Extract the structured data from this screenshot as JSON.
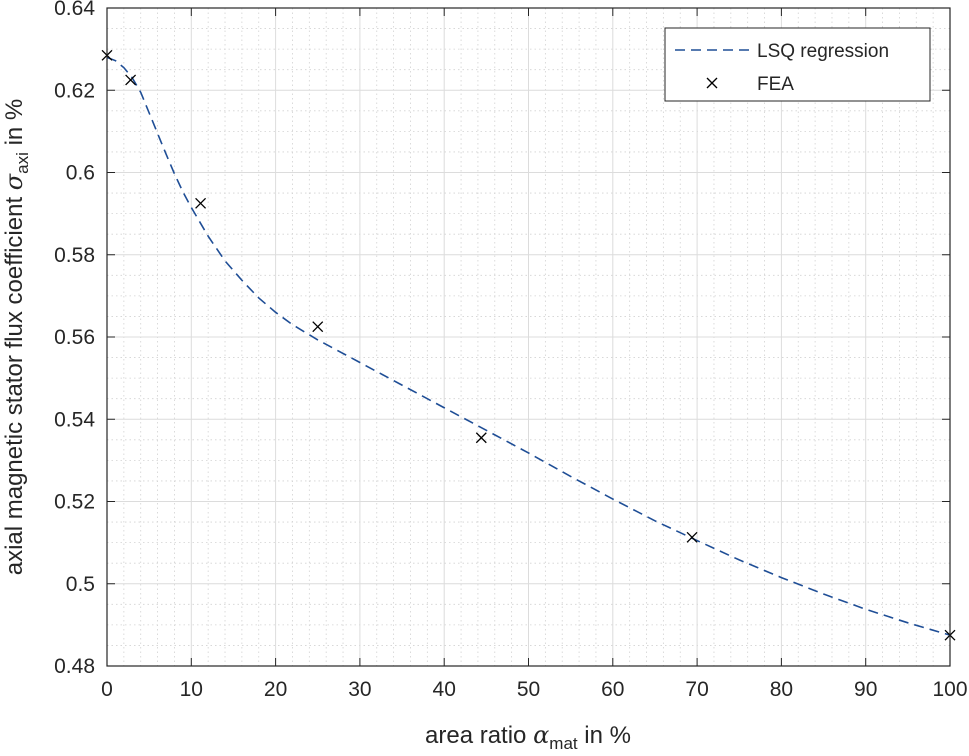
{
  "chart_data": {
    "type": "line",
    "title": "",
    "xlabel": {
      "prefix": "area ratio ",
      "symbol": "α",
      "subscript": "mat",
      "suffix": " in %"
    },
    "ylabel": {
      "prefix": "axial magnetic stator flux coefficient ",
      "symbol": "σ",
      "subscript": "axi",
      "suffix": " in %"
    },
    "xlim": [
      0,
      100
    ],
    "ylim": [
      0.48,
      0.64
    ],
    "xticks": [
      "0",
      "10",
      "20",
      "30",
      "40",
      "50",
      "60",
      "70",
      "80",
      "90",
      "100"
    ],
    "yticks": [
      "0.48",
      "0.5",
      "0.52",
      "0.54",
      "0.56",
      "0.58",
      "0.6",
      "0.62",
      "0.64"
    ],
    "grid": "on (major and minor)",
    "legend_position": "top-right",
    "series": [
      {
        "name": "LSQ regression",
        "style": "dashed",
        "color": "#1f4e96",
        "x": [
          0,
          1,
          2,
          3,
          4,
          5,
          6,
          7,
          8,
          9,
          10,
          12,
          14,
          16,
          18,
          20,
          22,
          25,
          30,
          35,
          40,
          45,
          50,
          55,
          60,
          65,
          70,
          75,
          80,
          85,
          90,
          95,
          100
        ],
        "y": [
          0.628,
          0.6272,
          0.6255,
          0.623,
          0.6195,
          0.6145,
          0.6095,
          0.6045,
          0.5997,
          0.5953,
          0.5915,
          0.5845,
          0.5785,
          0.5738,
          0.5695,
          0.566,
          0.563,
          0.5593,
          0.5538,
          0.5483,
          0.5428,
          0.5373,
          0.5318,
          0.5261,
          0.5206,
          0.5153,
          0.5105,
          0.5058,
          0.5015,
          0.4975,
          0.4938,
          0.4905,
          0.4875
        ]
      },
      {
        "name": "FEA",
        "style": "marker x",
        "color": "#000000",
        "x": [
          0,
          2.8,
          11.1,
          25,
          44.4,
          69.4,
          100
        ],
        "y": [
          0.6285,
          0.6225,
          0.5925,
          0.5625,
          0.5355,
          0.5113,
          0.4875
        ]
      }
    ]
  }
}
